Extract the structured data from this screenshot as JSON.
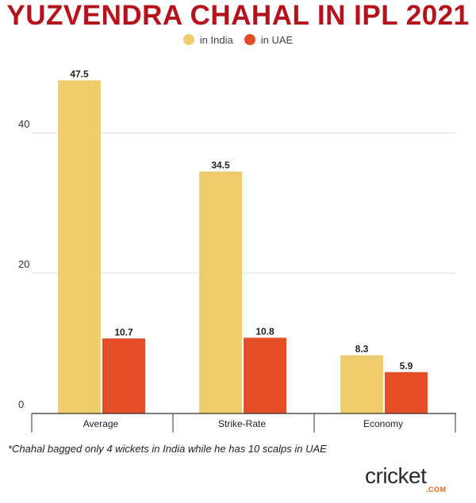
{
  "title": "YUZVENDRA CHAHAL IN IPL 2021",
  "colors": {
    "title": "#b5121b",
    "india": "#f0cd6c",
    "uae": "#e44d26",
    "grid": "#d9d9d9",
    "axis": "#333333",
    "logo_accent": "#e8631c"
  },
  "footnote": "*Chahal bagged only 4 wickets in India while he has 10 scalps in UAE",
  "logo": {
    "main": "cricket",
    "sub": ".COM"
  },
  "chart_data": {
    "type": "bar",
    "categories": [
      "Average",
      "Strike-Rate",
      "Economy"
    ],
    "series": [
      {
        "name": "in India",
        "values": [
          47.5,
          34.5,
          8.3
        ]
      },
      {
        "name": "in UAE",
        "values": [
          10.7,
          10.8,
          5.9
        ]
      }
    ],
    "value_labels": [
      [
        "47.5",
        "34.5",
        "8.3"
      ],
      [
        "10.7",
        "10.8",
        "5.9"
      ]
    ],
    "yticks": [
      0,
      20,
      40
    ],
    "ylim": [
      0,
      48
    ],
    "grid": true,
    "legend_position": "top-center",
    "xlabel": "",
    "ylabel": ""
  }
}
